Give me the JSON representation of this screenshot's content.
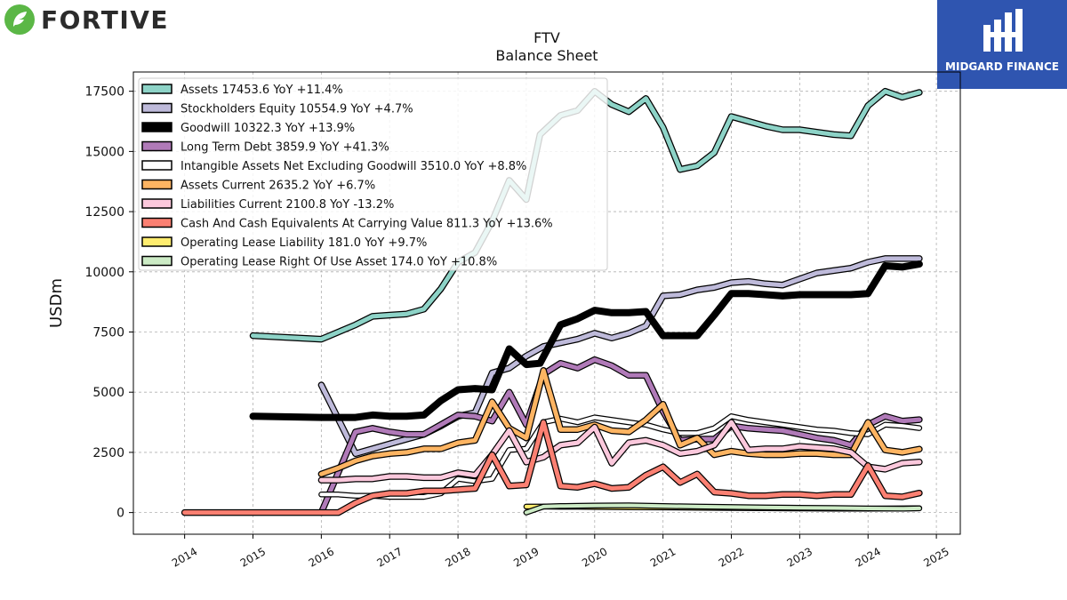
{
  "brand": {
    "name": "FORTIVE",
    "partner": "MIDGARD FINANCE"
  },
  "chart_data": {
    "type": "line",
    "title": "FTV",
    "subtitle": "Balance  Sheet",
    "ylabel": "USDm",
    "xlabel": "",
    "ylim": [
      -900,
      18300
    ],
    "xlim": [
      2013.25,
      2025.35
    ],
    "yticks": [
      0,
      2500,
      5000,
      7500,
      10000,
      12500,
      15000,
      17500
    ],
    "xticks": [
      2014,
      2015,
      2016,
      2017,
      2018,
      2019,
      2020,
      2021,
      2022,
      2023,
      2024,
      2025
    ],
    "grid": true,
    "legend_position": "top-left",
    "series": [
      {
        "name": "Assets  17453.6 YoY +11.4%",
        "color": "#8dd3c7",
        "width": 5,
        "x": [
          2015.0,
          2016.0,
          2016.5,
          2016.75,
          2017.0,
          2017.25,
          2017.5,
          2017.75,
          2018.0,
          2018.25,
          2018.5,
          2018.75,
          2019.0,
          2019.2,
          2019.5,
          2019.75,
          2020.0,
          2020.25,
          2020.5,
          2020.75,
          2021.0,
          2021.25,
          2021.5,
          2021.75,
          2022.0,
          2022.25,
          2022.5,
          2022.75,
          2023.0,
          2023.25,
          2023.5,
          2023.75,
          2024.0,
          2024.25,
          2024.5,
          2024.75
        ],
        "y": [
          7350,
          7200,
          7800,
          8150,
          8200,
          8250,
          8450,
          9300,
          10400,
          10800,
          12100,
          13800,
          13000,
          15700,
          16500,
          16700,
          17500,
          16950,
          16650,
          17200,
          16000,
          14250,
          14400,
          14950,
          16450,
          16250,
          16050,
          15900,
          15900,
          15800,
          15700,
          15650,
          16900,
          17500,
          17250,
          17450
        ]
      },
      {
        "name": "Stockholders Equity  10554.9 YoY +4.7%",
        "color": "#bebada",
        "width": 5,
        "x": [
          2016.0,
          2016.5,
          2016.75,
          2017.0,
          2017.25,
          2017.5,
          2017.75,
          2018.0,
          2018.25,
          2018.5,
          2018.75,
          2019.0,
          2019.25,
          2019.5,
          2019.75,
          2020.0,
          2020.25,
          2020.5,
          2020.75,
          2021.0,
          2021.25,
          2021.5,
          2021.75,
          2022.0,
          2022.25,
          2022.5,
          2022.75,
          2023.0,
          2023.25,
          2023.5,
          2023.75,
          2024.0,
          2024.25,
          2024.5,
          2024.75
        ],
        "y": [
          5300,
          2450,
          2650,
          2850,
          3050,
          3250,
          3600,
          4000,
          4150,
          5800,
          6000,
          6500,
          6900,
          7050,
          7200,
          7450,
          7250,
          7450,
          7750,
          9000,
          9050,
          9250,
          9350,
          9550,
          9600,
          9500,
          9450,
          9700,
          9950,
          10050,
          10150,
          10400,
          10550,
          10550,
          10550
        ]
      },
      {
        "name": "Goodwill  10322.3 YoY +13.9%",
        "color": "#000000",
        "width": 8,
        "x": [
          2015.0,
          2016.0,
          2016.25,
          2016.5,
          2016.75,
          2017.0,
          2017.25,
          2017.5,
          2017.75,
          2018.0,
          2018.25,
          2018.5,
          2018.75,
          2019.0,
          2019.2,
          2019.5,
          2019.75,
          2020.0,
          2020.25,
          2020.5,
          2020.75,
          2021.0,
          2021.25,
          2021.5,
          2021.75,
          2022.0,
          2022.25,
          2022.5,
          2022.75,
          2023.0,
          2023.25,
          2023.5,
          2023.75,
          2024.0,
          2024.25,
          2024.5,
          2024.75
        ],
        "y": [
          4000,
          3950,
          3950,
          3950,
          4050,
          4000,
          4000,
          4050,
          4650,
          5100,
          5150,
          5100,
          6800,
          6150,
          6200,
          7800,
          8050,
          8400,
          8300,
          8300,
          8350,
          7350,
          7350,
          7350,
          8200,
          9100,
          9100,
          9050,
          9000,
          9050,
          9050,
          9050,
          9050,
          9100,
          10250,
          10200,
          10320
        ]
      },
      {
        "name": "Long Term Debt  3859.9 YoY +41.3%",
        "color": "#b07ab8",
        "width": 5,
        "x": [
          2016.0,
          2016.5,
          2016.75,
          2017.0,
          2017.25,
          2017.5,
          2017.75,
          2018.0,
          2018.25,
          2018.5,
          2018.75,
          2019.0,
          2019.25,
          2019.5,
          2019.75,
          2020.0,
          2020.25,
          2020.5,
          2020.75,
          2021.0,
          2021.25,
          2021.5,
          2021.75,
          2022.0,
          2022.25,
          2022.5,
          2022.75,
          2023.0,
          2023.25,
          2023.5,
          2023.75,
          2024.0,
          2024.25,
          2024.5,
          2024.75
        ],
        "y": [
          0,
          3350,
          3500,
          3350,
          3250,
          3250,
          3650,
          4050,
          4000,
          3800,
          5000,
          3650,
          5750,
          6200,
          6000,
          6350,
          6100,
          5700,
          5700,
          4200,
          3000,
          3050,
          3050,
          3600,
          3500,
          3450,
          3400,
          3250,
          3100,
          3000,
          2800,
          3650,
          4000,
          3800,
          3860
        ]
      },
      {
        "name": "Intangible Assets Net Excluding Goodwill  3510.0 YoY +8.8%",
        "color": "#ffffff",
        "width": 4,
        "x": [
          2016.0,
          2016.25,
          2016.5,
          2016.75,
          2017.0,
          2017.25,
          2017.5,
          2017.75,
          2018.0,
          2018.25,
          2018.5,
          2018.75,
          2019.0,
          2019.25,
          2019.5,
          2019.75,
          2020.0,
          2020.25,
          2020.5,
          2020.75,
          2021.0,
          2021.25,
          2021.5,
          2021.75,
          2022.0,
          2022.25,
          2022.5,
          2022.75,
          2023.0,
          2023.25,
          2023.5,
          2023.75,
          2024.0,
          2024.25,
          2024.5,
          2024.75
        ],
        "y": [
          750,
          750,
          700,
          700,
          650,
          650,
          650,
          800,
          1400,
          1300,
          1400,
          2600,
          2650,
          3750,
          3900,
          3750,
          3950,
          3850,
          3750,
          3650,
          3450,
          3300,
          3300,
          3500,
          4000,
          3850,
          3750,
          3650,
          3550,
          3450,
          3400,
          3300,
          3250,
          3650,
          3600,
          3510
        ]
      },
      {
        "name": "Assets Current  2635.2 YoY +6.7%",
        "color": "#fdb462",
        "width": 5,
        "x": [
          2016.0,
          2016.25,
          2016.5,
          2016.75,
          2017.0,
          2017.25,
          2017.5,
          2017.75,
          2018.0,
          2018.25,
          2018.5,
          2018.75,
          2019.0,
          2019.25,
          2019.5,
          2019.75,
          2020.0,
          2020.25,
          2020.5,
          2020.75,
          2021.0,
          2021.25,
          2021.5,
          2021.75,
          2022.0,
          2022.25,
          2022.5,
          2022.75,
          2023.0,
          2023.25,
          2023.5,
          2023.75,
          2024.0,
          2024.25,
          2024.5,
          2024.75
        ],
        "y": [
          1600,
          1850,
          2150,
          2350,
          2450,
          2500,
          2650,
          2650,
          2900,
          3000,
          4600,
          3500,
          3100,
          5900,
          3450,
          3450,
          3650,
          3400,
          3350,
          3850,
          4500,
          2800,
          3100,
          2400,
          2550,
          2450,
          2400,
          2400,
          2450,
          2450,
          2400,
          2400,
          3750,
          2600,
          2500,
          2635
        ]
      },
      {
        "name": "Liabilities Current  2100.8 YoY -13.2%",
        "color": "#fbc8dc",
        "width": 5,
        "x": [
          2016.0,
          2016.25,
          2016.5,
          2016.75,
          2017.0,
          2017.25,
          2017.5,
          2017.75,
          2018.0,
          2018.25,
          2018.5,
          2018.75,
          2019.0,
          2019.25,
          2019.5,
          2019.75,
          2020.0,
          2020.25,
          2020.5,
          2020.75,
          2021.0,
          2021.25,
          2021.5,
          2021.75,
          2022.0,
          2022.25,
          2022.5,
          2022.75,
          2023.0,
          2023.25,
          2023.5,
          2023.75,
          2024.0,
          2024.25,
          2024.5,
          2024.75
        ],
        "y": [
          1350,
          1350,
          1400,
          1400,
          1500,
          1500,
          1450,
          1450,
          1650,
          1550,
          2400,
          3400,
          2100,
          2300,
          2800,
          2900,
          3550,
          2050,
          2900,
          3000,
          2800,
          2450,
          2550,
          2800,
          3750,
          2600,
          2650,
          2650,
          2750,
          2700,
          2650,
          2500,
          1900,
          1800,
          2050,
          2100
        ]
      },
      {
        "name": "Cash And Cash Equivalents At Carrying Value  811.3 YoY +13.6%",
        "color": "#fb8072",
        "width": 5,
        "x": [
          2014.0,
          2015.0,
          2016.0,
          2016.25,
          2016.5,
          2016.75,
          2017.0,
          2017.25,
          2017.5,
          2017.75,
          2018.0,
          2018.25,
          2018.5,
          2018.75,
          2019.0,
          2019.25,
          2019.5,
          2019.75,
          2020.0,
          2020.25,
          2020.5,
          2020.75,
          2021.0,
          2021.25,
          2021.5,
          2021.75,
          2022.0,
          2022.25,
          2022.5,
          2022.75,
          2023.0,
          2023.25,
          2023.5,
          2023.75,
          2024.0,
          2024.25,
          2024.5,
          2024.75
        ],
        "y": [
          0,
          0,
          0,
          0,
          400,
          700,
          800,
          800,
          900,
          900,
          950,
          1000,
          2400,
          1100,
          1150,
          3750,
          1100,
          1050,
          1200,
          1000,
          1050,
          1550,
          1900,
          1250,
          1600,
          850,
          800,
          700,
          700,
          750,
          750,
          700,
          750,
          750,
          1950,
          700,
          650,
          810
        ]
      },
      {
        "name": "Operating Lease Liability  181.0 YoY +9.7%",
        "color": "#ffed6f",
        "width": 4,
        "x": [
          2019.0,
          2019.25,
          2019.5,
          2019.75,
          2020.0,
          2020.5,
          2021.0,
          2021.5,
          2022.0,
          2022.5,
          2023.0,
          2023.5,
          2024.0,
          2024.5,
          2024.75
        ],
        "y": [
          250,
          250,
          240,
          240,
          230,
          220,
          210,
          200,
          190,
          180,
          170,
          165,
          165,
          175,
          181
        ]
      },
      {
        "name": "Operating Lease Right Of Use Asset  174.0 YoY +10.8%",
        "color": "#ccebc5",
        "width": 4,
        "x": [
          2019.0,
          2019.25,
          2019.5,
          2019.75,
          2020.0,
          2020.5,
          2021.0,
          2021.5,
          2022.0,
          2022.5,
          2023.0,
          2023.5,
          2024.0,
          2024.5,
          2024.75
        ],
        "y": [
          0,
          250,
          270,
          280,
          290,
          300,
          270,
          250,
          230,
          210,
          200,
          190,
          170,
          160,
          174
        ]
      }
    ]
  }
}
